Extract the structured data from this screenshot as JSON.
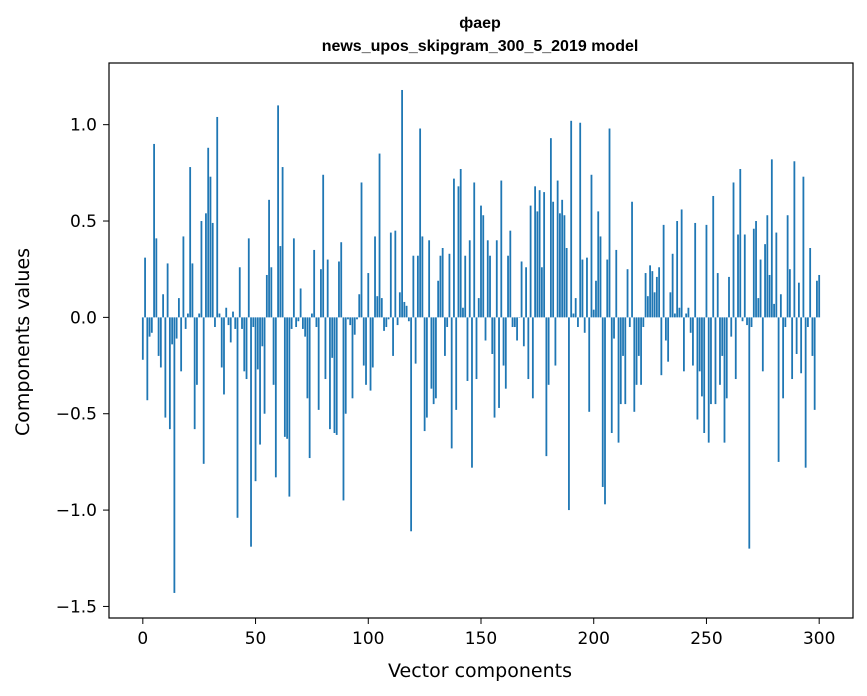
{
  "chart_data": {
    "type": "bar",
    "title_line1": "фаер",
    "title_line2": "news_upos_skipgram_300_5_2019 model",
    "xlabel": "Vector components",
    "ylabel": "Components values",
    "xlim": [
      -15,
      315
    ],
    "ylim": [
      -1.56,
      1.32
    ],
    "xticks": [
      0,
      50,
      100,
      150,
      200,
      250,
      300
    ],
    "xtick_labels": [
      "0",
      "50",
      "100",
      "150",
      "200",
      "250",
      "300"
    ],
    "yticks": [
      -1.5,
      -1.0,
      -0.5,
      0.0,
      0.5,
      1.0
    ],
    "ytick_labels": [
      "−1.5",
      "−1.0",
      "−0.5",
      "0.0",
      "0.5",
      "1.0"
    ],
    "bar_color": "#1f77b4",
    "bar_width": 0.8,
    "grid": false,
    "values": [
      -0.22,
      0.31,
      -0.43,
      -0.1,
      -0.08,
      0.9,
      0.41,
      -0.2,
      -0.26,
      0.12,
      -0.52,
      0.28,
      -0.58,
      -0.14,
      -1.43,
      -0.11,
      0.1,
      -0.28,
      0.42,
      -0.06,
      0.02,
      0.78,
      0.28,
      -0.58,
      -0.35,
      0.02,
      0.5,
      -0.76,
      0.54,
      0.88,
      0.73,
      0.49,
      -0.05,
      1.04,
      0.02,
      -0.26,
      -0.4,
      0.05,
      -0.04,
      -0.13,
      0.03,
      -0.06,
      -1.04,
      0.26,
      -0.06,
      -0.28,
      -0.32,
      0.41,
      -1.19,
      -0.05,
      -0.85,
      -0.27,
      -0.66,
      -0.15,
      -0.5,
      0.22,
      0.61,
      0.26,
      -0.35,
      -0.83,
      1.1,
      0.37,
      0.78,
      -0.62,
      -0.63,
      -0.93,
      -0.06,
      0.41,
      -0.05,
      -0.02,
      0.15,
      -0.06,
      -0.1,
      -0.42,
      -0.73,
      0.02,
      0.35,
      -0.05,
      -0.48,
      0.25,
      0.74,
      -0.32,
      0.3,
      -0.58,
      -0.21,
      -0.6,
      -0.61,
      0.29,
      0.39,
      -0.95,
      -0.5,
      -0.01,
      -0.04,
      -0.42,
      -0.09,
      -0.01,
      0.12,
      0.7,
      -0.25,
      -0.35,
      0.23,
      -0.38,
      -0.26,
      0.42,
      0.11,
      0.85,
      0.1,
      -0.07,
      -0.05,
      -0.01,
      0.44,
      -0.2,
      0.45,
      -0.04,
      0.13,
      1.18,
      0.08,
      0.06,
      -0.02,
      -1.11,
      0.32,
      -0.24,
      0.32,
      0.98,
      0.42,
      -0.59,
      -0.52,
      0.4,
      -0.37,
      -0.45,
      -0.42,
      0.19,
      0.32,
      0.36,
      -0.2,
      -0.05,
      0.33,
      -0.68,
      0.72,
      -0.48,
      0.68,
      0.77,
      0.05,
      0.32,
      -0.33,
      0.4,
      -0.78,
      0.7,
      -0.32,
      0.1,
      0.58,
      0.53,
      -0.12,
      0.4,
      0.32,
      -0.19,
      -0.52,
      0.4,
      -0.47,
      0.71,
      -0.25,
      -0.37,
      0.32,
      0.45,
      -0.05,
      -0.05,
      -0.12,
      0.0,
      0.29,
      -0.15,
      0.26,
      -0.32,
      0.58,
      -0.42,
      0.68,
      0.55,
      0.66,
      0.26,
      0.65,
      -0.72,
      -0.35,
      0.93,
      0.6,
      -0.25,
      0.71,
      0.54,
      0.61,
      0.53,
      0.36,
      -1.0,
      1.02,
      0.02,
      0.1,
      -0.05,
      1.01,
      0.3,
      -0.08,
      0.31,
      -0.49,
      0.74,
      0.04,
      0.19,
      0.55,
      0.42,
      -0.88,
      -0.97,
      0.3,
      0.98,
      -0.6,
      -0.11,
      0.35,
      -0.65,
      -0.45,
      -0.2,
      -0.45,
      0.25,
      -0.05,
      0.6,
      -0.49,
      -0.35,
      -0.2,
      -0.35,
      -0.05,
      0.23,
      0.11,
      0.27,
      0.24,
      0.13,
      0.21,
      0.26,
      -0.3,
      0.48,
      -0.12,
      -0.23,
      0.13,
      0.33,
      0.02,
      0.5,
      0.05,
      0.56,
      -0.28,
      0.02,
      0.05,
      -0.08,
      -0.25,
      0.49,
      -0.53,
      -0.28,
      -0.41,
      -0.6,
      0.48,
      -0.65,
      -0.45,
      0.63,
      -0.45,
      0.23,
      -0.35,
      -0.2,
      -0.65,
      -0.42,
      0.21,
      -0.1,
      0.7,
      -0.32,
      0.43,
      0.77,
      -0.02,
      0.43,
      -0.04,
      -1.2,
      -0.05,
      0.46,
      0.5,
      0.1,
      0.3,
      -0.28,
      0.38,
      0.53,
      0.22,
      0.82,
      0.07,
      0.44,
      -0.75,
      0.12,
      -0.42,
      -0.05,
      0.53,
      0.25,
      -0.32,
      0.81,
      -0.19,
      0.18,
      -0.29,
      0.73,
      -0.78,
      -0.05,
      0.36,
      -0.2,
      -0.48,
      0.19,
      0.22
    ]
  }
}
